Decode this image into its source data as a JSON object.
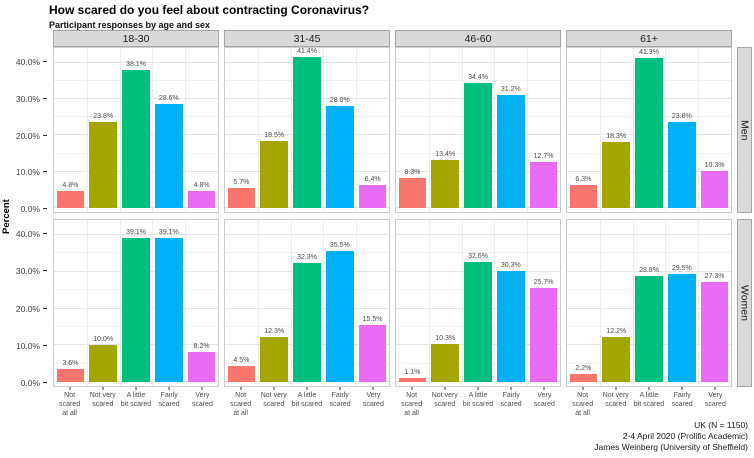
{
  "title": "How scared do you feel about contracting Coronavirus?",
  "subtitle": "Participant responses by age and sex",
  "caption": {
    "line1": "UK (N = 1150)",
    "line2": "2-4 April 2020 (Prolific Academic)",
    "line3": "James Weinberg (University of Sheffield)"
  },
  "chart_data": {
    "type": "bar",
    "title": "How scared do you feel about contracting Coronavirus?",
    "subtitle": "Participant responses by age and sex",
    "facet_columns": [
      "18-30",
      "31-45",
      "46-60",
      "61+"
    ],
    "facet_rows": [
      "Men",
      "Women"
    ],
    "categories": [
      "Not scared at all",
      "Not very scared",
      "A little bit scared",
      "Fairly scared",
      "Very scared"
    ],
    "category_label_lines": [
      [
        "Not scared",
        "at all"
      ],
      [
        "Not very",
        "scared"
      ],
      [
        "A little",
        "bit scared"
      ],
      [
        "Fairly",
        "scared"
      ],
      [
        "Very",
        "scared"
      ]
    ],
    "ylabel": "Percent",
    "ylim": [
      0,
      44
    ],
    "y_tick_values": [
      0,
      10,
      20,
      30,
      40
    ],
    "y_tick_labels": [
      "0.0%",
      "10.0%",
      "20.0%",
      "30.0%",
      "40.0%"
    ],
    "y_minor_values": [
      5,
      15,
      25,
      35
    ],
    "grid": true,
    "legend": "none",
    "bar_colors": [
      "#F8766D",
      "#A3A500",
      "#00BF7D",
      "#00B0F6",
      "#E76BF3"
    ],
    "strip_background": "#d9d9d9",
    "panels": [
      {
        "row": "Men",
        "column": "18-30",
        "values": [
          4.8,
          23.8,
          38.1,
          28.6,
          4.8
        ]
      },
      {
        "row": "Men",
        "column": "31-45",
        "values": [
          5.7,
          18.5,
          41.4,
          28.0,
          6.4
        ]
      },
      {
        "row": "Men",
        "column": "46-60",
        "values": [
          8.3,
          13.4,
          34.4,
          31.2,
          12.7
        ]
      },
      {
        "row": "Men",
        "column": "61+",
        "values": [
          6.3,
          18.3,
          41.3,
          23.8,
          10.3
        ]
      },
      {
        "row": "Women",
        "column": "18-30",
        "values": [
          3.6,
          10.0,
          39.1,
          39.1,
          8.2
        ]
      },
      {
        "row": "Women",
        "column": "31-45",
        "values": [
          4.5,
          12.3,
          32.3,
          35.5,
          15.5
        ]
      },
      {
        "row": "Women",
        "column": "46-60",
        "values": [
          1.1,
          10.3,
          32.6,
          30.3,
          25.7
        ]
      },
      {
        "row": "Women",
        "column": "61+",
        "values": [
          2.2,
          12.2,
          28.8,
          29.5,
          27.3
        ]
      }
    ]
  }
}
